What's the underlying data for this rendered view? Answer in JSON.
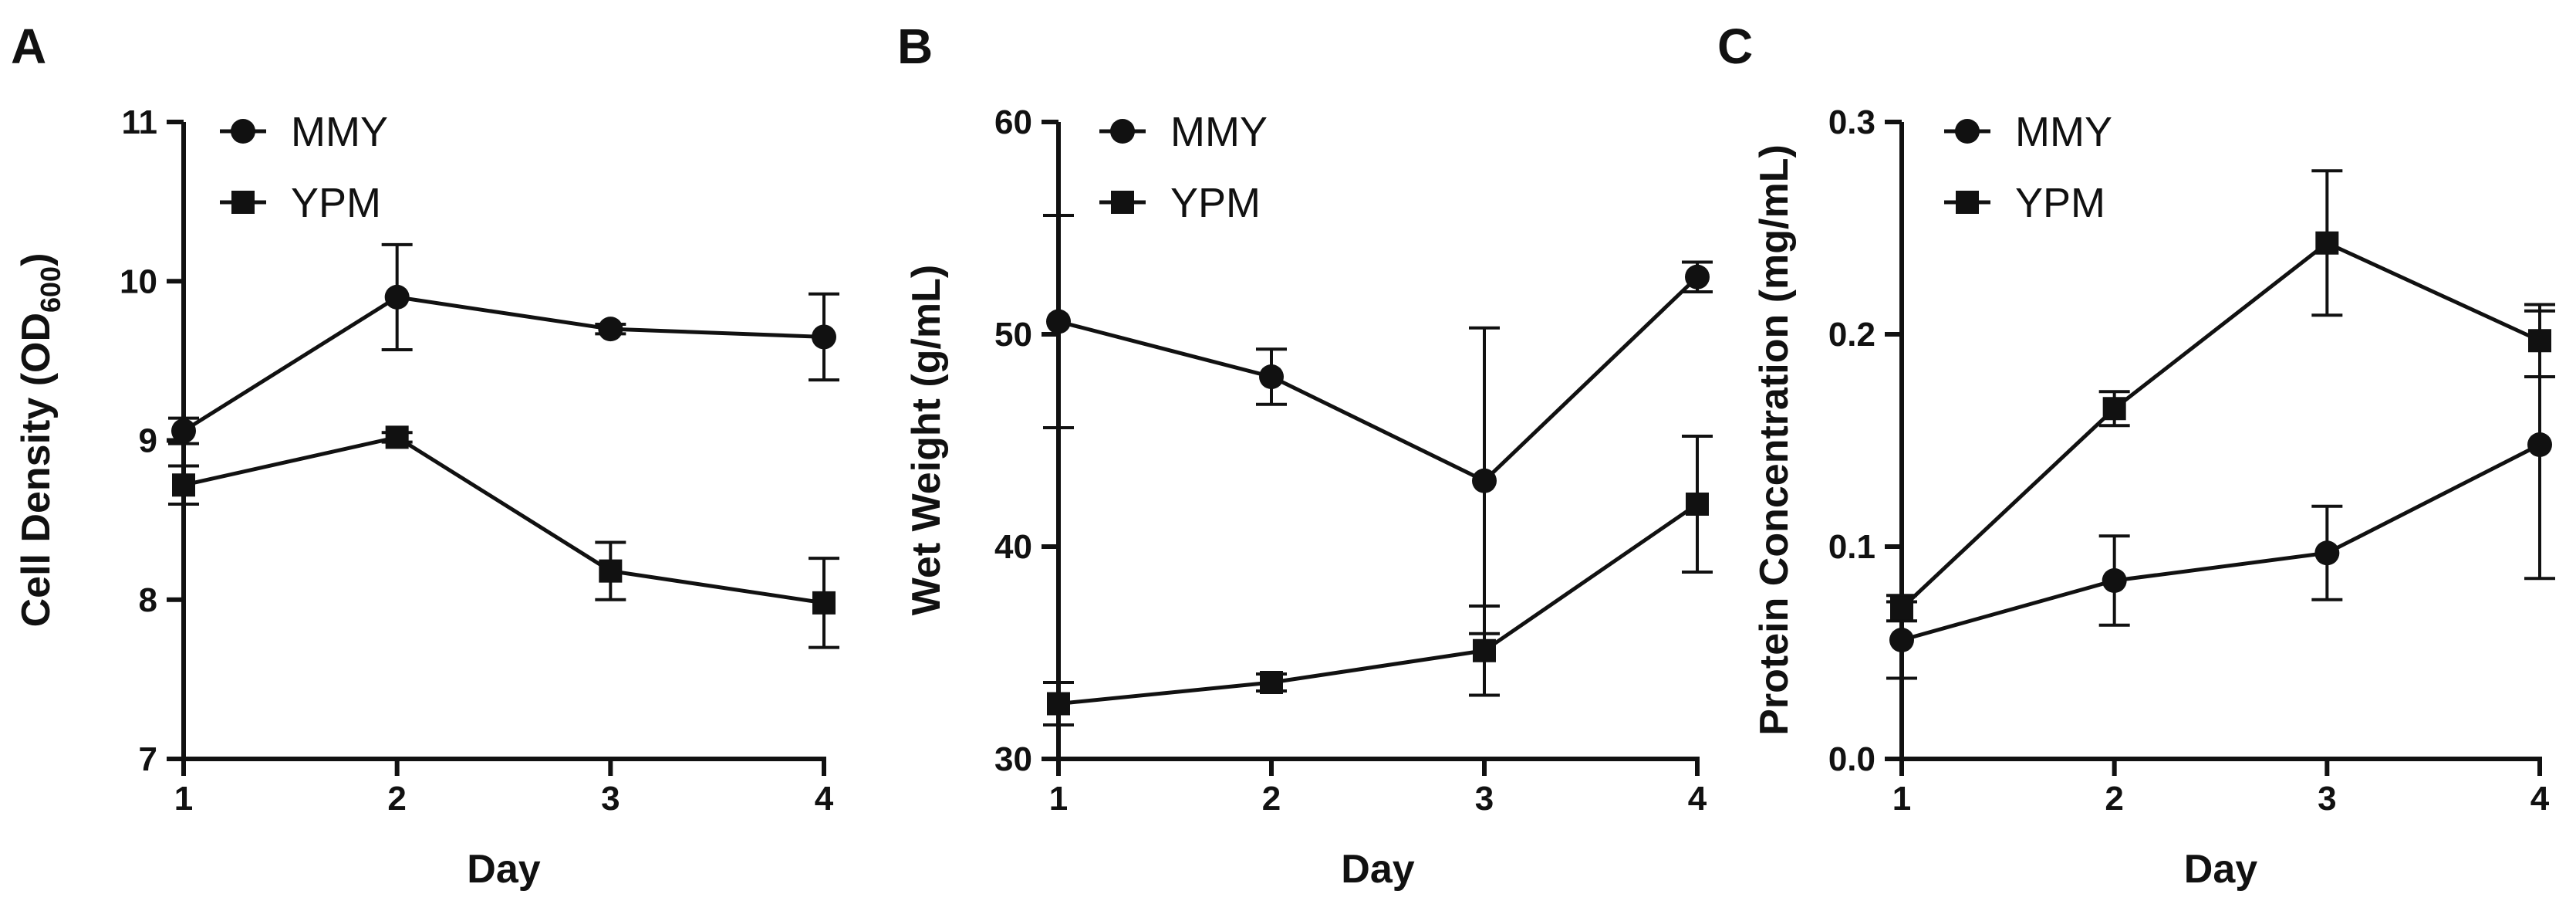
{
  "chart_data": [
    {
      "panel": "A",
      "type": "line",
      "title": "",
      "xlabel": "Day",
      "ylabel": "Cell Density (OD",
      "ylabel_sub": "600",
      "ylabel_suffix": ")",
      "x": [
        1,
        2,
        3,
        4
      ],
      "xticks": [
        "1",
        "2",
        "3",
        "4"
      ],
      "ylim": [
        7,
        11
      ],
      "yticks": [
        7,
        8,
        9,
        10,
        11
      ],
      "ytick_labels": [
        "7",
        "8",
        "9",
        "10",
        "11"
      ],
      "legend": [
        "MMY",
        "YPM"
      ],
      "series": [
        {
          "name": "MMY",
          "marker": "circle",
          "values": [
            9.06,
            9.9,
            9.7,
            9.65
          ],
          "err": [
            0.08,
            0.33,
            0.03,
            0.27
          ]
        },
        {
          "name": "YPM",
          "marker": "square",
          "values": [
            8.72,
            9.02,
            8.18,
            7.98
          ],
          "err": [
            0.12,
            0.03,
            0.18,
            0.28
          ]
        }
      ]
    },
    {
      "panel": "B",
      "type": "line",
      "title": "",
      "xlabel": "Day",
      "ylabel": "Wet Weight (g/mL)",
      "ylabel_sub": "",
      "ylabel_suffix": "",
      "x": [
        1,
        2,
        3,
        4
      ],
      "xticks": [
        "1",
        "2",
        "3",
        "4"
      ],
      "ylim": [
        30,
        60
      ],
      "yticks": [
        30,
        40,
        50,
        60
      ],
      "ytick_labels": [
        "30",
        "40",
        "50",
        "60"
      ],
      "legend": [
        "MMY",
        "YPM"
      ],
      "series": [
        {
          "name": "MMY",
          "marker": "circle",
          "values": [
            50.6,
            48.0,
            43.1,
            52.7
          ],
          "err": [
            5.0,
            1.3,
            7.2,
            0.7
          ]
        },
        {
          "name": "YPM",
          "marker": "square",
          "values": [
            32.6,
            33.6,
            35.1,
            42.0
          ],
          "err": [
            1.0,
            0.4,
            2.1,
            3.2
          ]
        }
      ]
    },
    {
      "panel": "C",
      "type": "line",
      "title": "",
      "xlabel": "Day",
      "ylabel": "Protein Concentration (mg/mL)",
      "ylabel_sub": "",
      "ylabel_suffix": "",
      "x": [
        1,
        2,
        3,
        4
      ],
      "xticks": [
        "1",
        "2",
        "3",
        "4"
      ],
      "ylim": [
        0,
        0.3
      ],
      "yticks": [
        0,
        0.1,
        0.2,
        0.3
      ],
      "ytick_labels": [
        "0.0",
        "0.1",
        "0.2",
        "0.3"
      ],
      "legend": [
        "MMY",
        "YPM"
      ],
      "series": [
        {
          "name": "MMY",
          "marker": "circle",
          "values": [
            0.056,
            0.084,
            0.097,
            0.148
          ],
          "err": [
            0.018,
            0.021,
            0.022,
            0.063
          ]
        },
        {
          "name": "YPM",
          "marker": "square",
          "values": [
            0.071,
            0.165,
            0.243,
            0.197
          ],
          "err": [
            0.006,
            0.008,
            0.034,
            0.017
          ]
        }
      ]
    }
  ]
}
